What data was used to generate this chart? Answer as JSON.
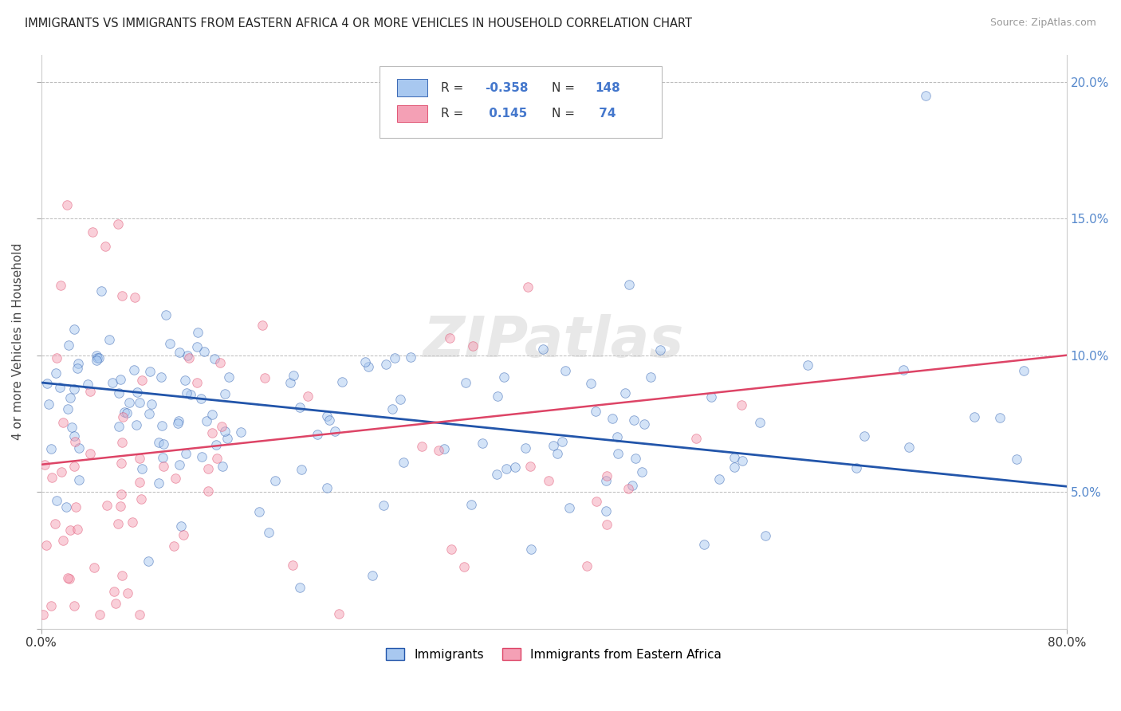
{
  "title": "IMMIGRANTS VS IMMIGRANTS FROM EASTERN AFRICA 4 OR MORE VEHICLES IN HOUSEHOLD CORRELATION CHART",
  "source": "Source: ZipAtlas.com",
  "ylabel": "4 or more Vehicles in Household",
  "legend_label_blue": "Immigrants",
  "legend_label_pink": "Immigrants from Eastern Africa",
  "R_blue": -0.358,
  "N_blue": 148,
  "R_pink": 0.145,
  "N_pink": 74,
  "color_blue": "#A8C8F0",
  "color_pink": "#F4A0B5",
  "line_color_blue": "#2255AA",
  "line_color_pink": "#DD4466",
  "xlim": [
    0.0,
    0.8
  ],
  "ylim": [
    0.0,
    0.21
  ],
  "xticks": [
    0.0,
    0.8
  ],
  "xtick_labels": [
    "0.0%",
    "80.0%"
  ],
  "yticks": [
    0.0,
    0.05,
    0.1,
    0.15,
    0.2
  ],
  "ytick_labels_right": [
    "",
    "5.0%",
    "10.0%",
    "15.0%",
    "20.0%"
  ],
  "watermark": "ZIPatlas",
  "blue_trend_start": 0.09,
  "blue_trend_end": 0.052,
  "pink_trend_start": 0.06,
  "pink_trend_end": 0.1
}
